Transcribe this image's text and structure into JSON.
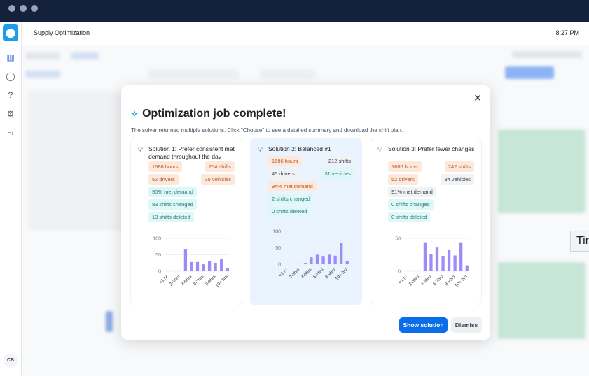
{
  "app": {
    "title": "Supply Optimization",
    "time": "8:27 PM",
    "user_initials": "CB",
    "tooltip_fragment": "Tir"
  },
  "sidebar": {
    "icons": [
      "map-icon",
      "refresh-icon",
      "help-icon",
      "settings-icon",
      "route-icon"
    ]
  },
  "modal": {
    "title": "Optimization job complete!",
    "subtitle": "The solver returned multiple solutions. Click \"Choose\" to see a detailed summary and download the shift plan.",
    "buttons": {
      "primary": "Show solution",
      "secondary": "Dismiss"
    },
    "solutions": [
      {
        "title": "Solution 1: Prefer consistent met demand throughout the day",
        "selected": false,
        "chips": [
          {
            "text": "1686 hours",
            "tone": "orange"
          },
          {
            "text": "254 shifts",
            "tone": "orange"
          },
          {
            "text": "52 drivers",
            "tone": "orange"
          },
          {
            "text": "35 vehicles",
            "tone": "orange"
          },
          {
            "text": "90% met demand",
            "tone": "teal"
          },
          {
            "text": "83 shifts changed",
            "tone": "teal"
          },
          {
            "text": "13 shifts deleted",
            "tone": "teal"
          }
        ]
      },
      {
        "title": "Solution 2: Balanced #1",
        "selected": true,
        "chips": [
          {
            "text": "1686 hours",
            "tone": "orange"
          },
          {
            "text": "212 shifts",
            "tone": "gray"
          },
          {
            "text": "45 drivers",
            "tone": "gray"
          },
          {
            "text": "31 vehicles",
            "tone": "teal"
          },
          {
            "text": "94% met demand",
            "tone": "orange"
          },
          {
            "text": "2 shifts changed",
            "tone": "teal"
          },
          {
            "text": "0 shifts deleted",
            "tone": "teal"
          }
        ]
      },
      {
        "title": "Solution 3: Prefer fewer changes",
        "selected": false,
        "chips": [
          {
            "text": "1686 hours",
            "tone": "orange"
          },
          {
            "text": "242 shifts",
            "tone": "orange"
          },
          {
            "text": "52 drivers",
            "tone": "orange"
          },
          {
            "text": "34 vehicles",
            "tone": "gray"
          },
          {
            "text": "91% met demand",
            "tone": "gray"
          },
          {
            "text": "0 shifts changed",
            "tone": "teal"
          },
          {
            "text": "0 shifts deleted",
            "tone": "teal"
          }
        ]
      }
    ]
  },
  "colors": {
    "accent": "#0b6ee8",
    "bar": "#9b8cf9",
    "titlebar": "#14213d"
  },
  "chart_data": [
    {
      "type": "bar",
      "tick_labels": [
        "<1 hr",
        "2-3hrs",
        "4-5hrs",
        "6-7hrs",
        "8-9hrs",
        "10+ hrs"
      ],
      "yticks": [
        0,
        50,
        100
      ],
      "ylim": [
        0,
        100
      ],
      "values": [
        0,
        0,
        0,
        68,
        28,
        28,
        21,
        30,
        24,
        36,
        9
      ]
    },
    {
      "type": "bar",
      "tick_labels": [
        "<1 hr",
        "2-3hrs",
        "4-5hrs",
        "6-7hrs",
        "8-9hrs",
        "10+ hrs"
      ],
      "yticks": [
        0,
        50,
        100
      ],
      "ylim": [
        0,
        100
      ],
      "values": [
        0,
        0,
        0,
        2,
        21,
        29,
        23,
        29,
        26,
        66,
        9
      ]
    },
    {
      "type": "bar",
      "tick_labels": [
        "<1 hr",
        "2-3hrs",
        "4-5hrs",
        "6-7hrs",
        "8-9hrs",
        "10+ hrs"
      ],
      "yticks": [
        0,
        50
      ],
      "ylim": [
        0,
        50
      ],
      "values": [
        0,
        0,
        0,
        44,
        26,
        36,
        23,
        32,
        24,
        44,
        9
      ]
    }
  ]
}
